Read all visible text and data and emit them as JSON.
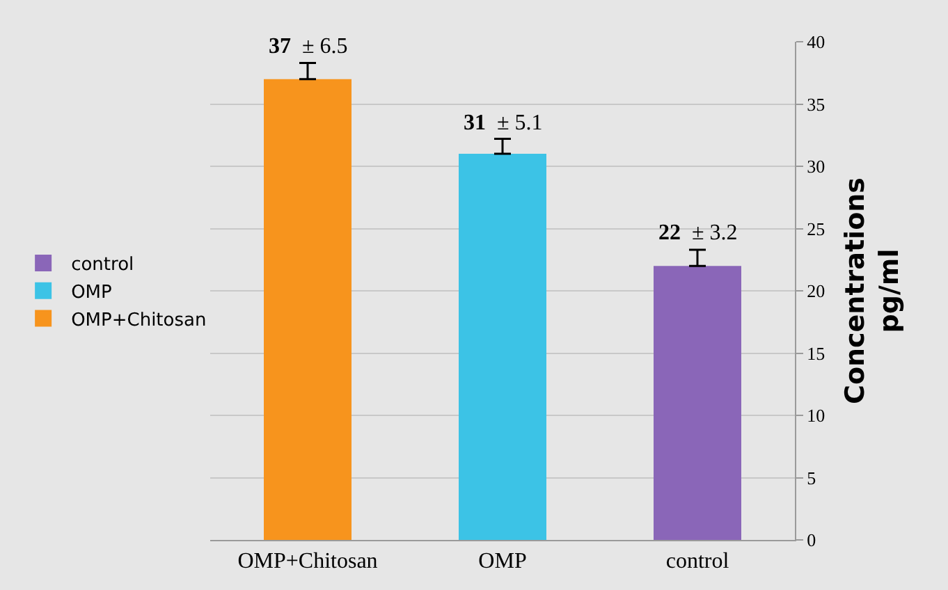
{
  "chart_data": {
    "type": "bar",
    "categories": [
      "OMP+Chitosan",
      "OMP",
      "control"
    ],
    "series": [
      {
        "name": "OMP+Chitosan",
        "color": "#f7941d",
        "values": [
          37,
          null,
          null
        ],
        "errors": [
          [
            37,
            38.3
          ],
          null,
          null
        ],
        "value_labels": [
          "37 ± 6.5",
          null,
          null
        ]
      },
      {
        "name": "OMP",
        "color": "#3cc3e6",
        "values": [
          null,
          31,
          null
        ],
        "errors": [
          null,
          [
            31,
            32.2
          ],
          null
        ],
        "value_labels": [
          null,
          "31 ± 5.1",
          null
        ]
      },
      {
        "name": "control",
        "color": "#8a66b8",
        "values": [
          null,
          null,
          22
        ],
        "errors": [
          null,
          null,
          [
            22,
            23.3
          ]
        ],
        "value_labels": [
          null,
          null,
          "22 ± 3.2"
        ]
      }
    ],
    "ylabel": "Concentrations pg/ml",
    "ylim": [
      0,
      40
    ],
    "yticks": [
      0,
      5,
      10,
      15,
      20,
      25,
      30,
      35,
      40
    ],
    "grid": "y",
    "legend": "left"
  }
}
